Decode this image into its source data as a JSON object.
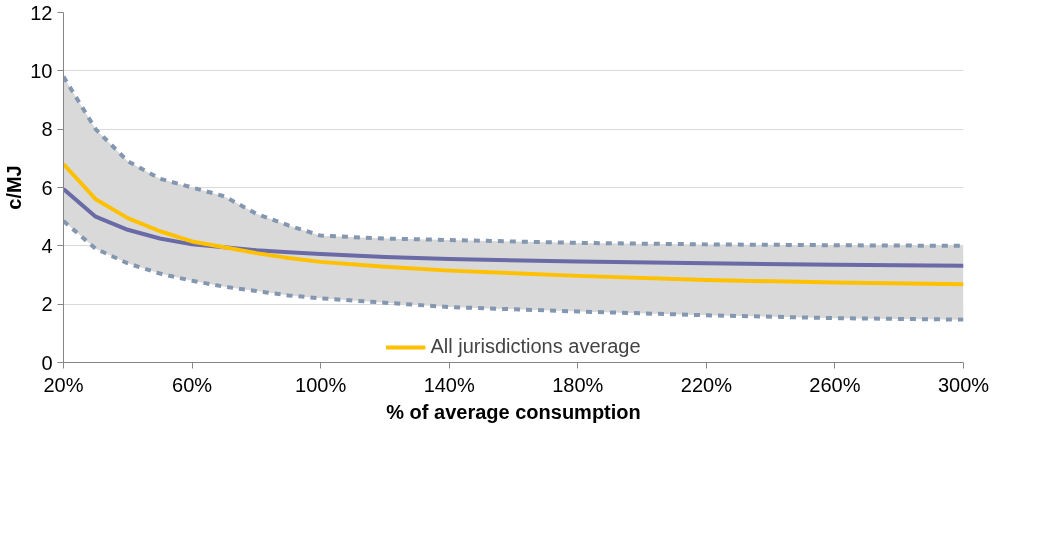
{
  "chart_data": {
    "type": "line",
    "xlabel": "% of average consumption",
    "ylabel": "c/MJ",
    "x": [
      20,
      30,
      40,
      50,
      60,
      70,
      80,
      90,
      100,
      120,
      140,
      180,
      220,
      260,
      300
    ],
    "xlim": [
      20,
      300
    ],
    "xticks": [
      {
        "value": 20,
        "label": "20%"
      },
      {
        "value": 60,
        "label": "60%"
      },
      {
        "value": 100,
        "label": "100%"
      },
      {
        "value": 140,
        "label": "140%"
      },
      {
        "value": 180,
        "label": "180%"
      },
      {
        "value": 220,
        "label": "220%"
      },
      {
        "value": 260,
        "label": "260%"
      },
      {
        "value": 300,
        "label": "300%"
      }
    ],
    "ylim": [
      0,
      12
    ],
    "yticks": [
      0,
      2,
      4,
      6,
      8,
      10,
      12
    ],
    "grid": "y",
    "legend": "bottom",
    "series": [
      {
        "color": "#8497b0",
        "line_style": "dashed",
        "values": [
          9.8,
          8.0,
          6.9,
          6.3,
          6.0,
          5.7,
          5.1,
          4.7,
          4.35,
          4.25,
          4.2,
          4.1,
          4.05,
          4.02,
          4.0
        ],
        "upper": [
          9.8,
          8.0,
          6.9,
          6.3,
          6.0,
          5.7,
          5.1,
          4.7,
          4.35,
          4.25,
          4.2,
          4.1,
          4.05,
          4.02,
          4.0
        ],
        "lower": [
          4.85,
          3.9,
          3.4,
          3.05,
          2.8,
          2.6,
          2.45,
          2.3,
          2.2,
          2.05,
          1.9,
          1.75,
          1.62,
          1.52,
          1.47
        ]
      },
      {
        "color": "#8497b0",
        "line_style": "dashed",
        "values": [
          4.85,
          3.9,
          3.4,
          3.05,
          2.8,
          2.6,
          2.45,
          2.3,
          2.2,
          2.05,
          1.9,
          1.75,
          1.62,
          1.52,
          1.47
        ]
      },
      {
        "color": "#6a6aa6",
        "values": [
          5.95,
          5.0,
          4.55,
          4.25,
          4.05,
          3.95,
          3.85,
          3.78,
          3.72,
          3.62,
          3.55,
          3.46,
          3.4,
          3.35,
          3.32
        ]
      },
      {
        "name": "All jurisdictions average",
        "color": "#ffc000",
        "values": [
          6.8,
          5.6,
          4.95,
          4.5,
          4.15,
          3.95,
          3.75,
          3.58,
          3.45,
          3.28,
          3.15,
          2.97,
          2.83,
          2.74,
          2.68
        ]
      }
    ]
  }
}
